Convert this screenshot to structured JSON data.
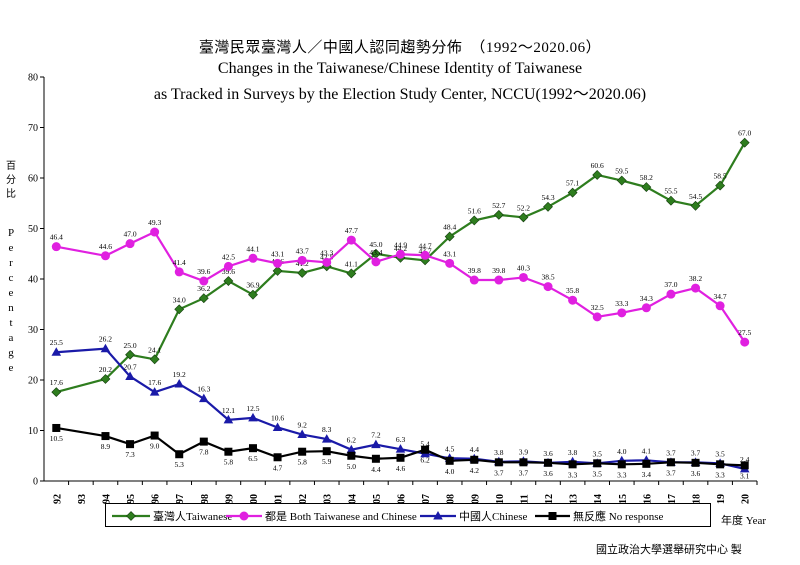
{
  "title_cn": "臺灣民眾臺灣人／中國人認同趨勢分佈　（1992～2020.06）",
  "title_en_1": "Changes in the Taiwanese/Chinese Identity of Taiwanese",
  "title_en_2": "as Tracked in Surveys by the Election Study Center, NCCU(1992～2020.06)",
  "ylabel_cn": "百分比",
  "ylabel_en": "Percentage",
  "xlabel": "年度 Year",
  "source": "國立政治大學選舉研究中心 製",
  "chart_data": {
    "type": "line",
    "ylim": [
      0,
      80
    ],
    "yticks": [
      0,
      10,
      20,
      30,
      40,
      50,
      60,
      70,
      80
    ],
    "xcategories": [
      "92",
      "93",
      "94",
      "95",
      "96",
      "97",
      "98",
      "99",
      "00",
      "01",
      "02",
      "03",
      "04",
      "05",
      "06",
      "07",
      "08",
      "09",
      "10",
      "11",
      "12",
      "13",
      "14",
      "15",
      "16",
      "17",
      "18",
      "19",
      "20"
    ],
    "x": [
      0,
      2,
      3,
      4,
      5,
      6,
      7,
      8,
      9,
      10,
      11,
      12,
      13,
      14,
      15,
      16,
      17,
      18,
      19,
      20,
      21,
      22,
      23,
      24,
      25,
      26,
      27,
      28
    ],
    "series": [
      {
        "name": "臺灣人Taiwanese",
        "color": "#2e7d1e",
        "marker": "diamond",
        "values": [
          17.6,
          20.2,
          25.0,
          24.1,
          34.0,
          36.2,
          39.6,
          36.9,
          41.6,
          41.2,
          42.5,
          41.1,
          45.0,
          44.2,
          43.7,
          48.4,
          51.6,
          52.7,
          52.2,
          54.3,
          57.1,
          60.6,
          59.5,
          58.2,
          55.5,
          54.5,
          58.5,
          67.0
        ]
      },
      {
        "name": "都是 Both Taiwanese and Chinese",
        "color": "#e020e0",
        "marker": "circle",
        "values": [
          46.4,
          44.6,
          47.0,
          49.3,
          41.4,
          39.6,
          42.5,
          44.1,
          43.1,
          43.7,
          43.3,
          47.7,
          43.4,
          44.9,
          44.7,
          43.1,
          39.8,
          39.8,
          40.3,
          38.5,
          35.8,
          32.5,
          33.3,
          34.3,
          37.0,
          38.2,
          34.7,
          27.5
        ]
      },
      {
        "name": "中國人Chinese",
        "color": "#1a1aa8",
        "marker": "triangle",
        "values": [
          25.5,
          26.2,
          20.7,
          17.6,
          19.2,
          16.3,
          12.1,
          12.5,
          10.6,
          9.2,
          8.3,
          6.2,
          7.2,
          6.3,
          5.4,
          4.5,
          4.4,
          3.8,
          3.9,
          3.6,
          3.8,
          3.5,
          4.0,
          4.1,
          3.7,
          3.7,
          3.5,
          2.4
        ]
      },
      {
        "name": "無反應 No response",
        "color": "#000000",
        "marker": "square",
        "values": [
          10.5,
          8.9,
          7.3,
          9.0,
          5.3,
          7.8,
          5.8,
          6.5,
          4.7,
          5.8,
          5.9,
          5.0,
          4.4,
          4.6,
          6.2,
          4.0,
          4.2,
          3.7,
          3.7,
          3.6,
          3.3,
          3.5,
          3.3,
          3.4,
          3.7,
          3.6,
          3.3,
          3.1
        ]
      }
    ]
  }
}
